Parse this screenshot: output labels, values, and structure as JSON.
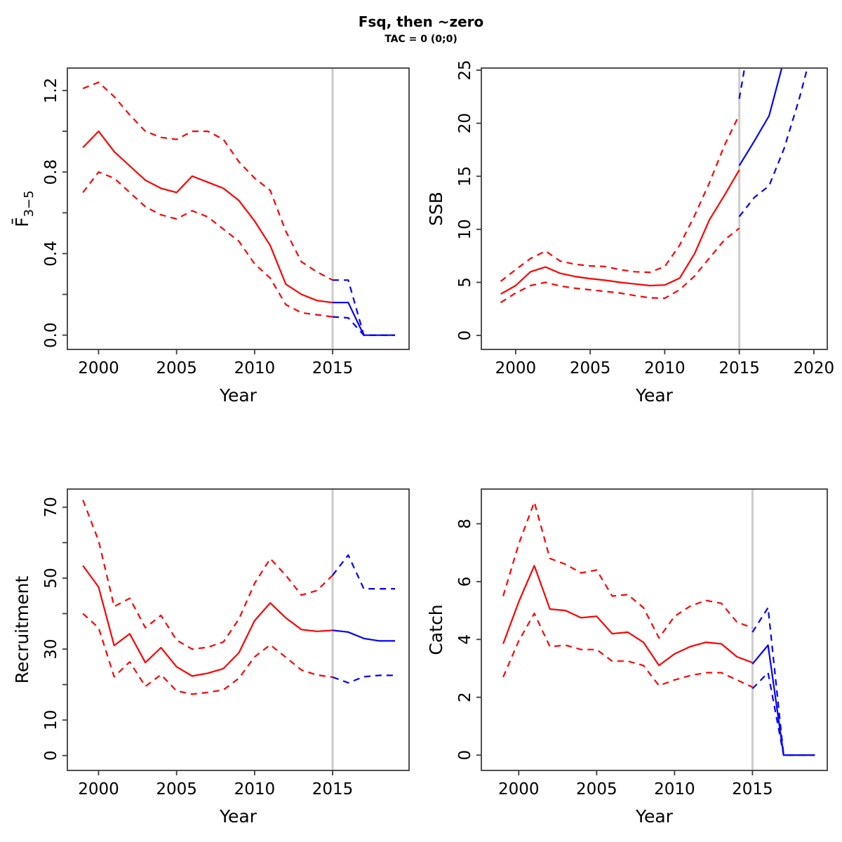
{
  "title": "Fsq, then ~zero",
  "subtitle": "TAC = 0 (0;0)",
  "colors": {
    "history": "#ff0000",
    "projection": "#0000ff",
    "forecast_start_line": "#cccccc",
    "axis": "#3c3c3c"
  },
  "forecast_start_year": 2015,
  "chart_data": [
    {
      "id": "fbar",
      "type": "line",
      "xlabel": "Year",
      "ylabel": "F",
      "ylabel_overline": true,
      "ylabel_sub": "3−5",
      "x_domain": [
        1998.0,
        2019.9
      ],
      "y_domain": [
        -0.07,
        1.31
      ],
      "x_ticks": [
        2000,
        2005,
        2010,
        2015
      ],
      "x_tick_labels": [
        "2000",
        "2005",
        "2010",
        "2015"
      ],
      "y_ticks": [
        0,
        0.2,
        0.4,
        0.6,
        0.8,
        1.0,
        1.2
      ],
      "y_tick_labels": [
        "0.0",
        "",
        "0.4",
        "",
        "0.8",
        "",
        "1.2"
      ],
      "grid": false,
      "legend": "none",
      "series": [
        {
          "name": "historical-median",
          "color": "#ff0000",
          "dashed": false,
          "x": [
            1999,
            2000,
            2001,
            2002,
            2003,
            2004,
            2005,
            2006,
            2007,
            2008,
            2009,
            2010,
            2011,
            2012,
            2013,
            2014,
            2015
          ],
          "y": [
            0.92,
            1.0,
            0.9,
            0.83,
            0.76,
            0.72,
            0.7,
            0.78,
            0.75,
            0.72,
            0.66,
            0.56,
            0.44,
            0.25,
            0.2,
            0.17,
            0.16
          ]
        },
        {
          "name": "historical-upper-ci",
          "color": "#ff0000",
          "dashed": true,
          "x": [
            1999,
            2000,
            2001,
            2002,
            2003,
            2004,
            2005,
            2006,
            2007,
            2008,
            2009,
            2010,
            2011,
            2012,
            2013,
            2014,
            2015
          ],
          "y": [
            1.21,
            1.24,
            1.17,
            1.08,
            1.0,
            0.97,
            0.96,
            1.0,
            1.0,
            0.96,
            0.85,
            0.77,
            0.71,
            0.51,
            0.36,
            0.31,
            0.27
          ]
        },
        {
          "name": "historical-lower-ci",
          "color": "#ff0000",
          "dashed": true,
          "x": [
            1999,
            2000,
            2001,
            2002,
            2003,
            2004,
            2005,
            2006,
            2007,
            2008,
            2009,
            2010,
            2011,
            2012,
            2013,
            2014,
            2015
          ],
          "y": [
            0.7,
            0.8,
            0.77,
            0.7,
            0.63,
            0.59,
            0.57,
            0.61,
            0.58,
            0.52,
            0.46,
            0.35,
            0.28,
            0.15,
            0.11,
            0.1,
            0.09
          ]
        },
        {
          "name": "projection-median",
          "color": "#0000ff",
          "dashed": false,
          "x": [
            2015,
            2016,
            2017,
            2018,
            2019
          ],
          "y": [
            0.16,
            0.16,
            0.0,
            0.0,
            0.0
          ]
        },
        {
          "name": "projection-upper-ci",
          "color": "#0000ff",
          "dashed": true,
          "x": [
            2015,
            2016,
            2017,
            2018,
            2019
          ],
          "y": [
            0.27,
            0.27,
            0.0,
            0.0,
            0.0
          ]
        },
        {
          "name": "projection-lower-ci",
          "color": "#0000ff",
          "dashed": true,
          "x": [
            2015,
            2016,
            2017,
            2018,
            2019
          ],
          "y": [
            0.09,
            0.085,
            0.0,
            0.0,
            0.0
          ]
        }
      ]
    },
    {
      "id": "ssb",
      "type": "line",
      "xlabel": "Year",
      "ylabel": "SSB",
      "ylabel_overline": false,
      "ylabel_sub": "",
      "x_domain": [
        1997.7,
        2020.9
      ],
      "y_domain": [
        -1.32,
        25.2
      ],
      "x_ticks": [
        2000,
        2005,
        2010,
        2015,
        2020
      ],
      "x_tick_labels": [
        "2000",
        "2005",
        "2010",
        "2015",
        "2020"
      ],
      "y_ticks": [
        0,
        5,
        10,
        15,
        20,
        25
      ],
      "y_tick_labels": [
        "0",
        "5",
        "10",
        "15",
        "20",
        "25"
      ],
      "grid": false,
      "legend": "none",
      "series": [
        {
          "name": "historical-median",
          "color": "#ff0000",
          "dashed": false,
          "x": [
            1999,
            2000,
            2001,
            2002,
            2003,
            2004,
            2005,
            2006,
            2007,
            2008,
            2009,
            2010,
            2011,
            2012,
            2013,
            2014,
            2015
          ],
          "y": [
            3.9,
            4.7,
            6.0,
            6.45,
            5.85,
            5.55,
            5.35,
            5.2,
            5.0,
            4.85,
            4.7,
            4.75,
            5.4,
            7.7,
            10.9,
            13.2,
            15.6
          ]
        },
        {
          "name": "historical-upper-ci",
          "color": "#ff0000",
          "dashed": true,
          "x": [
            1999,
            2000,
            2001,
            2002,
            2003,
            2004,
            2005,
            2006,
            2007,
            2008,
            2009,
            2010,
            2011,
            2012,
            2013,
            2014,
            2015
          ],
          "y": [
            5.1,
            6.2,
            7.25,
            7.95,
            7.0,
            6.7,
            6.55,
            6.5,
            6.2,
            6.0,
            5.95,
            6.5,
            8.5,
            11.3,
            14.4,
            17.9,
            20.8
          ]
        },
        {
          "name": "historical-lower-ci",
          "color": "#ff0000",
          "dashed": true,
          "x": [
            1999,
            2000,
            2001,
            2002,
            2003,
            2004,
            2005,
            2006,
            2007,
            2008,
            2009,
            2010,
            2011,
            2012,
            2013,
            2014,
            2015
          ],
          "y": [
            3.1,
            4.0,
            4.7,
            5.0,
            4.65,
            4.45,
            4.3,
            4.15,
            4.0,
            3.75,
            3.55,
            3.5,
            4.3,
            5.6,
            7.3,
            9.0,
            10.1
          ]
        },
        {
          "name": "projection-median",
          "color": "#0000ff",
          "dashed": false,
          "x": [
            2015,
            2016,
            2017,
            2018
          ],
          "y": [
            16.0,
            18.3,
            20.7,
            26.0
          ]
        },
        {
          "name": "projection-upper-ci",
          "color": "#0000ff",
          "dashed": true,
          "x": [
            2015,
            2016
          ],
          "y": [
            22.3,
            30.5
          ]
        },
        {
          "name": "projection-lower-ci",
          "color": "#0000ff",
          "dashed": true,
          "x": [
            2015,
            2016,
            2017,
            2018,
            2019,
            2020
          ],
          "y": [
            11.2,
            13.0,
            14.1,
            17.6,
            22.2,
            27.5
          ]
        }
      ]
    },
    {
      "id": "recruitment",
      "type": "line",
      "xlabel": "Year",
      "ylabel": "Recruitment",
      "ylabel_overline": false,
      "ylabel_sub": "",
      "x_domain": [
        1998.0,
        2019.9
      ],
      "y_domain": [
        -4.2,
        75.1
      ],
      "x_ticks": [
        2000,
        2005,
        2010,
        2015
      ],
      "x_tick_labels": [
        "2000",
        "2005",
        "2010",
        "2015"
      ],
      "y_ticks": [
        0,
        10,
        20,
        30,
        40,
        50,
        60,
        70
      ],
      "y_tick_labels": [
        "0",
        "10",
        "",
        "30",
        "",
        "50",
        "",
        "70"
      ],
      "grid": false,
      "legend": "none",
      "series": [
        {
          "name": "historical-median",
          "color": "#ff0000",
          "dashed": false,
          "x": [
            1999,
            2000,
            2001,
            2002,
            2003,
            2004,
            2005,
            2006,
            2007,
            2008,
            2009,
            2010,
            2011,
            2012,
            2013,
            2014,
            2015
          ],
          "y": [
            53.5,
            47.5,
            31.0,
            34.3,
            26.2,
            30.4,
            25.0,
            22.4,
            23.2,
            24.5,
            29.0,
            38.0,
            43.0,
            38.8,
            35.5,
            35.0,
            35.3
          ]
        },
        {
          "name": "historical-upper-ci",
          "color": "#ff0000",
          "dashed": true,
          "x": [
            1999,
            2000,
            2001,
            2002,
            2003,
            2004,
            2005,
            2006,
            2007,
            2008,
            2009,
            2010,
            2011,
            2012,
            2013,
            2014,
            2015
          ],
          "y": [
            72.0,
            60.5,
            42.0,
            44.3,
            36.0,
            39.5,
            32.5,
            30.0,
            30.5,
            32.0,
            38.5,
            48.5,
            55.5,
            50.8,
            45.2,
            46.5,
            50.8
          ]
        },
        {
          "name": "historical-lower-ci",
          "color": "#ff0000",
          "dashed": true,
          "x": [
            1999,
            2000,
            2001,
            2002,
            2003,
            2004,
            2005,
            2006,
            2007,
            2008,
            2009,
            2010,
            2011,
            2012,
            2013,
            2014,
            2015
          ],
          "y": [
            40.0,
            36.0,
            22.2,
            26.4,
            19.5,
            22.8,
            18.2,
            17.3,
            17.8,
            18.5,
            21.8,
            27.8,
            31.2,
            27.7,
            24.1,
            22.7,
            22.1
          ]
        },
        {
          "name": "projection-median",
          "color": "#0000ff",
          "dashed": false,
          "x": [
            2015,
            2016,
            2017,
            2018,
            2019
          ],
          "y": [
            35.3,
            34.8,
            33.0,
            32.3,
            32.3
          ]
        },
        {
          "name": "projection-upper-ci",
          "color": "#0000ff",
          "dashed": true,
          "x": [
            2015,
            2016,
            2017,
            2018,
            2019
          ],
          "y": [
            50.8,
            56.5,
            47.0,
            47.0,
            47.0
          ]
        },
        {
          "name": "projection-lower-ci",
          "color": "#0000ff",
          "dashed": true,
          "x": [
            2015,
            2016,
            2017,
            2018,
            2019
          ],
          "y": [
            22.1,
            20.5,
            22.2,
            22.6,
            22.6
          ]
        }
      ]
    },
    {
      "id": "catch",
      "type": "line",
      "xlabel": "Year",
      "ylabel": "Catch",
      "ylabel_overline": false,
      "ylabel_sub": "",
      "x_domain": [
        1997.6,
        2019.8
      ],
      "y_domain": [
        -0.53,
        9.2
      ],
      "x_ticks": [
        2000,
        2005,
        2010,
        2015
      ],
      "x_tick_labels": [
        "2000",
        "2005",
        "2010",
        "2015"
      ],
      "y_ticks": [
        0,
        2,
        4,
        6,
        8
      ],
      "y_tick_labels": [
        "0",
        "2",
        "4",
        "6",
        "8"
      ],
      "grid": false,
      "legend": "none",
      "series": [
        {
          "name": "historical-median",
          "color": "#ff0000",
          "dashed": false,
          "x": [
            1999,
            2000,
            2001,
            2002,
            2003,
            2004,
            2005,
            2006,
            2007,
            2008,
            2009,
            2010,
            2011,
            2012,
            2013,
            2014,
            2015
          ],
          "y": [
            3.85,
            5.3,
            6.55,
            5.05,
            5.0,
            4.75,
            4.8,
            4.2,
            4.25,
            3.9,
            3.1,
            3.5,
            3.75,
            3.9,
            3.85,
            3.4,
            3.2
          ]
        },
        {
          "name": "historical-upper-ci",
          "color": "#ff0000",
          "dashed": true,
          "x": [
            1999,
            2000,
            2001,
            2002,
            2003,
            2004,
            2005,
            2006,
            2007,
            2008,
            2009,
            2010,
            2011,
            2012,
            2013,
            2014,
            2015
          ],
          "y": [
            5.5,
            7.3,
            8.75,
            6.8,
            6.6,
            6.3,
            6.4,
            5.5,
            5.55,
            5.1,
            4.05,
            4.8,
            5.15,
            5.35,
            5.25,
            4.6,
            4.4
          ]
        },
        {
          "name": "historical-lower-ci",
          "color": "#ff0000",
          "dashed": true,
          "x": [
            1999,
            2000,
            2001,
            2002,
            2003,
            2004,
            2005,
            2006,
            2007,
            2008,
            2009,
            2010,
            2011,
            2012,
            2013,
            2014,
            2015
          ],
          "y": [
            2.7,
            3.95,
            4.9,
            3.75,
            3.8,
            3.65,
            3.65,
            3.25,
            3.25,
            3.1,
            2.4,
            2.6,
            2.75,
            2.85,
            2.85,
            2.6,
            2.35
          ]
        },
        {
          "name": "projection-median",
          "color": "#0000ff",
          "dashed": false,
          "x": [
            2015,
            2016,
            2017,
            2018,
            2019
          ],
          "y": [
            3.15,
            3.8,
            0.0,
            0.0,
            0.0
          ]
        },
        {
          "name": "projection-upper-ci",
          "color": "#0000ff",
          "dashed": true,
          "x": [
            2015,
            2016,
            2017,
            2018,
            2019
          ],
          "y": [
            4.25,
            5.1,
            0.0,
            0.0,
            0.0
          ]
        },
        {
          "name": "projection-lower-ci",
          "color": "#0000ff",
          "dashed": true,
          "x": [
            2015,
            2016,
            2017,
            2018,
            2019
          ],
          "y": [
            2.3,
            2.85,
            0.0,
            0.0,
            0.0
          ]
        }
      ]
    }
  ]
}
